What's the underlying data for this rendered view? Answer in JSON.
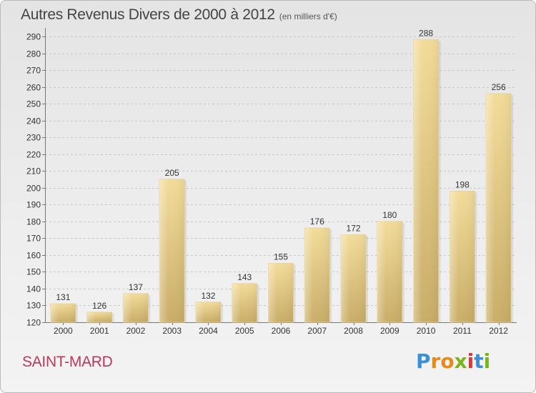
{
  "title": "Autres Revenus Divers de 2000 à 2012",
  "subtitle": "(en milliers d'€)",
  "commune": "SAINT-MARD",
  "logo": {
    "letters": [
      "P",
      "r",
      "o",
      "x",
      "i",
      "t",
      "i"
    ],
    "colors": [
      "#3d8fd6",
      "#e88a1a",
      "#e88a1a",
      "#7ab51d",
      "#d43c3c",
      "#3d8fd6",
      "#7ab51d"
    ]
  },
  "chart_data": {
    "type": "bar",
    "categories": [
      "2000",
      "2001",
      "2002",
      "2003",
      "2004",
      "2005",
      "2006",
      "2007",
      "2008",
      "2009",
      "2010",
      "2011",
      "2012"
    ],
    "values": [
      131,
      126,
      137,
      205,
      132,
      143,
      155,
      176,
      172,
      180,
      288,
      198,
      256
    ],
    "ylim": [
      120,
      290
    ],
    "yticks": [
      120,
      130,
      140,
      150,
      160,
      170,
      180,
      190,
      200,
      210,
      220,
      230,
      240,
      250,
      260,
      270,
      280,
      290
    ],
    "grid": true,
    "bar_color": "#e4c67e"
  }
}
